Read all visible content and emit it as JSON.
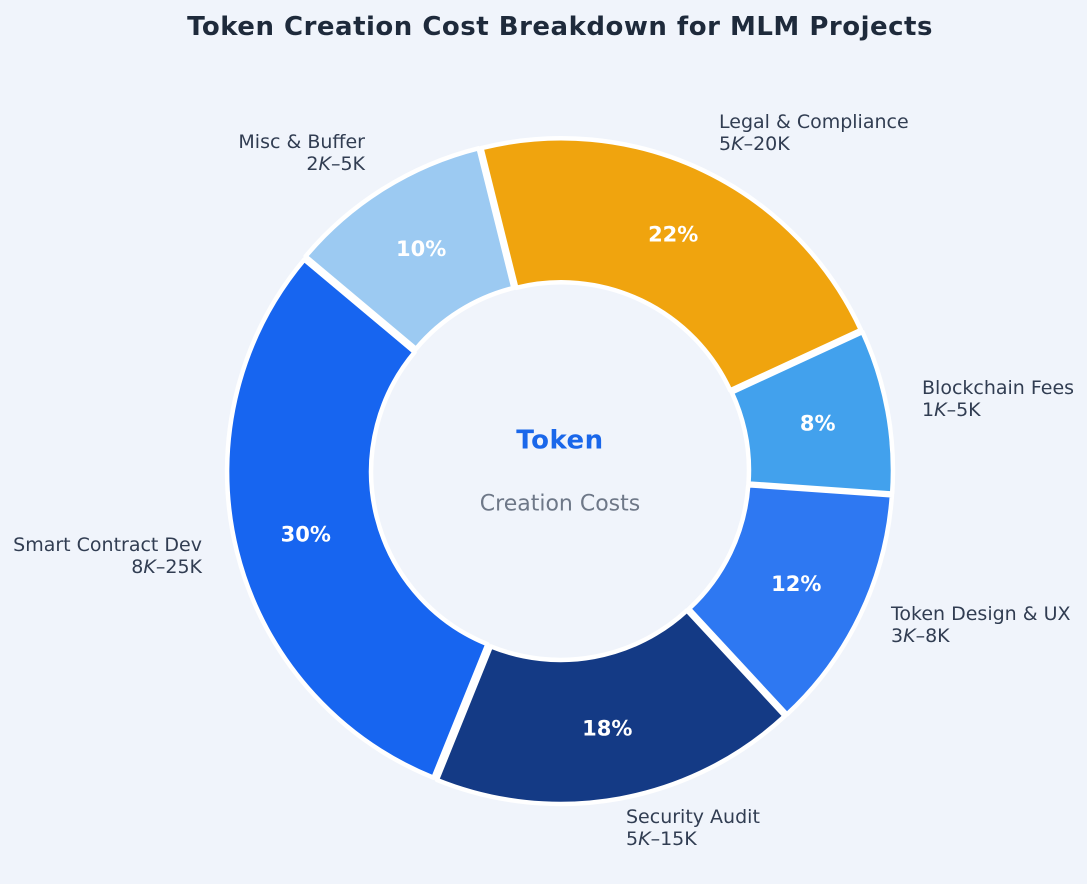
{
  "title": "Token Creation Cost Breakdown for MLM Projects",
  "background_color": "#f0f4fb",
  "chart_data": {
    "type": "pie",
    "subtype": "donut",
    "title": "Token Creation Cost Breakdown for MLM Projects",
    "start_angle_deg": 104,
    "direction": "clockwise",
    "legend": "none",
    "center_label": {
      "title": "Token",
      "subtitle": "Creation Costs",
      "title_color": "#1a67ea",
      "subtitle_color": "#6e7888"
    },
    "slices": [
      {
        "label": "Legal & Compliance",
        "range": "5K–20K",
        "range_num": "5",
        "range_k": "K",
        "range_rest": "–20K",
        "pct": 22,
        "pct_label": "22%",
        "color": "#f0a40e"
      },
      {
        "label": "Blockchain Fees",
        "range": "1K–5K",
        "range_num": "1",
        "range_k": "K",
        "range_rest": "–5K",
        "pct": 8,
        "pct_label": "8%",
        "color": "#42a1ed"
      },
      {
        "label": "Token Design & UX",
        "range": "3K–8K",
        "range_num": "3",
        "range_k": "K",
        "range_rest": "–8K",
        "pct": 12,
        "pct_label": "12%",
        "color": "#2e78f2"
      },
      {
        "label": "Security Audit",
        "range": "5K–15K",
        "range_num": "5",
        "range_k": "K",
        "range_rest": "–15K",
        "pct": 18,
        "pct_label": "18%",
        "color": "#143a85"
      },
      {
        "label": "Smart Contract Dev",
        "range": "8K–25K",
        "range_num": "8",
        "range_k": "K",
        "range_rest": "–25K",
        "pct": 30,
        "pct_label": "30%",
        "color": "#1765f0"
      },
      {
        "label": "Misc & Buffer",
        "range": "2K–5K",
        "range_num": "2",
        "range_k": "K",
        "range_rest": "–5K",
        "pct": 10,
        "pct_label": "10%",
        "color": "#9ccaf2"
      }
    ]
  }
}
